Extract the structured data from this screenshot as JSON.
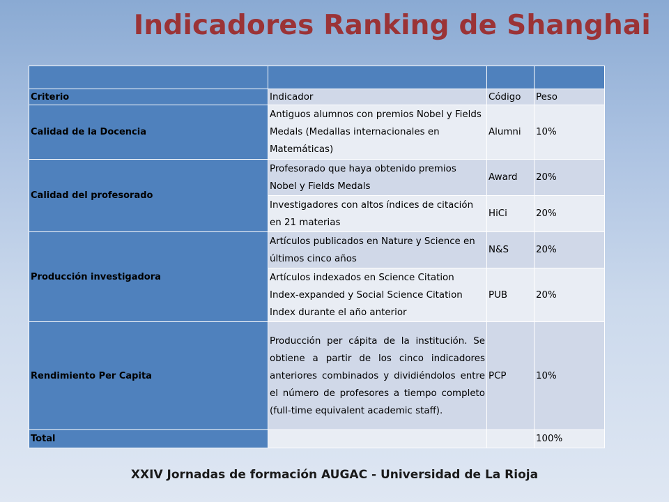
{
  "title": "Indicadores Ranking de Shanghai",
  "table": {
    "header": [
      "Criterio",
      "Indicador",
      "Código",
      "Peso"
    ],
    "criteria": {
      "docencia": "Calidad de la Docencia",
      "profesorado": "Calidad del profesorado",
      "produccion": "Producción investigadora",
      "rendimiento": "Rendimiento Per Capita",
      "total": "Total"
    },
    "rows": [
      {
        "indicador": "Antiguos alumnos con premios Nobel y Fields Medals (Medallas internacionales en Matemáticas)",
        "codigo": "Alumni",
        "peso": "10%"
      },
      {
        "indicador": "Profesorado que haya obtenido premios Nobel y Fields Medals",
        "codigo": "Award",
        "peso": "20%"
      },
      {
        "indicador": "Investigadores con altos índices de citación en 21 materias",
        "codigo": "HiCi",
        "peso": "20%"
      },
      {
        "indicador": "Artículos publicados en Nature y Science en últimos cinco años",
        "codigo": "N&S",
        "peso": "20%"
      },
      {
        "indicador": "Artículos indexados en Science Citation Index-expanded y Social Science Citation Index durante el año anterior",
        "codigo": "PUB",
        "peso": "20%"
      },
      {
        "indicador": "Producción per cápita de la institución. Se obtiene a partir de los cinco indicadores anteriores combinados y dividiéndolos entre el número de profesores a tiempo completo (full-time equivalent academic staff).",
        "codigo": "PCP",
        "peso": "10%"
      }
    ],
    "total_peso": "100%"
  },
  "footer": "XXIV Jornadas de formación AUGAC - Universidad de La Rioja"
}
